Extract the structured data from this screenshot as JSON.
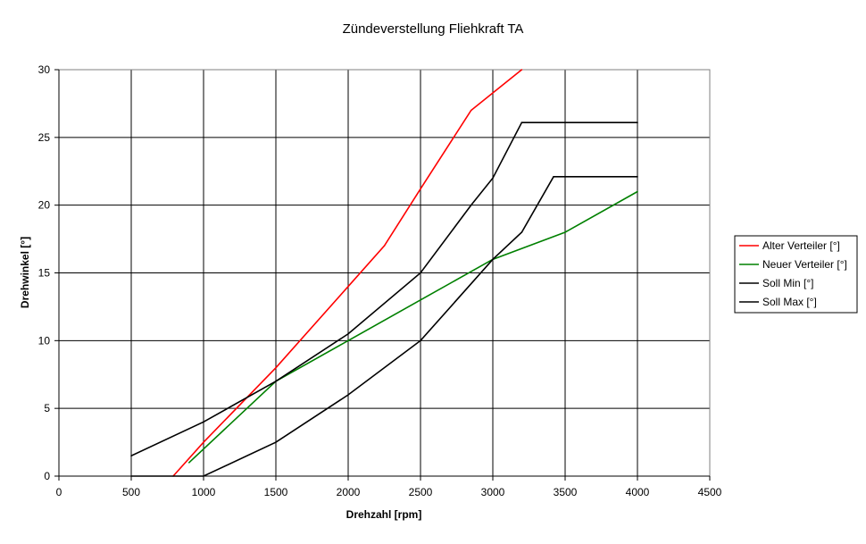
{
  "chart_data": {
    "type": "line",
    "title": "Zündeverstellung Fliehkraft TA",
    "xlabel": "Drehzahl [rpm]",
    "ylabel": "Drehwinkel [°]",
    "xlim": [
      0,
      4500
    ],
    "ylim": [
      0,
      30
    ],
    "x_ticks": [
      0,
      500,
      1000,
      1500,
      2000,
      2500,
      3000,
      3500,
      4000,
      4500
    ],
    "y_ticks": [
      0,
      5,
      10,
      15,
      20,
      25,
      30
    ],
    "grid": true,
    "legend_position": "right",
    "series": [
      {
        "name": "Alter Verteiler [°]",
        "color": "#ff0000",
        "points": [
          [
            790,
            0
          ],
          [
            1000,
            2.5
          ],
          [
            1500,
            8
          ],
          [
            2000,
            14
          ],
          [
            2250,
            17
          ],
          [
            2500,
            21.2
          ],
          [
            2850,
            27
          ],
          [
            3200,
            30
          ]
        ]
      },
      {
        "name": "Neuer Verteiler [°]",
        "color": "#008000",
        "points": [
          [
            900,
            1
          ],
          [
            1500,
            7
          ],
          [
            2000,
            10
          ],
          [
            2500,
            13
          ],
          [
            3000,
            16
          ],
          [
            3500,
            18
          ],
          [
            4000,
            21
          ]
        ]
      },
      {
        "name": "Soll Min [°]",
        "color": "#000000",
        "points": [
          [
            500,
            0
          ],
          [
            1000,
            0
          ],
          [
            1500,
            2.5
          ],
          [
            2000,
            6
          ],
          [
            2500,
            10
          ],
          [
            3000,
            16
          ],
          [
            3200,
            18
          ],
          [
            3420,
            22.1
          ],
          [
            4000,
            22.1
          ]
        ]
      },
      {
        "name": "Soll Max [°]",
        "color": "#000000",
        "points": [
          [
            500,
            1.5
          ],
          [
            1000,
            4
          ],
          [
            1500,
            7
          ],
          [
            2000,
            10.5
          ],
          [
            2500,
            15
          ],
          [
            2850,
            20
          ],
          [
            3000,
            22
          ],
          [
            3200,
            26.1
          ],
          [
            4000,
            26.1
          ]
        ]
      }
    ]
  }
}
